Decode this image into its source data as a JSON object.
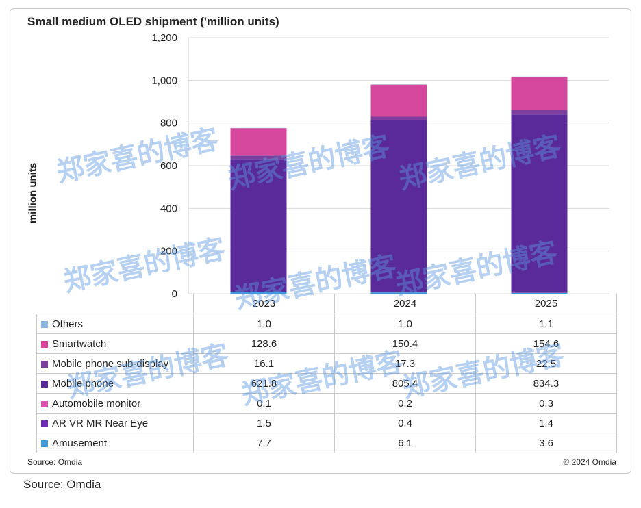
{
  "title": "Small medium OLED shipment ('million units)",
  "ylabel": "million units",
  "source_small": "Source: Omdia",
  "copyright": "© 2024 Omdia",
  "source_big": "Source: Omdia",
  "watermark": "郑家喜的博客",
  "chart_data": {
    "type": "bar",
    "stacked": true,
    "title": "Small medium OLED shipment ('million units)",
    "ylabel": "million units",
    "ylim": [
      0,
      1200
    ],
    "yticks": [
      "0",
      "200",
      "400",
      "600",
      "800",
      "1,000",
      "1,200"
    ],
    "ytick_values": [
      0,
      200,
      400,
      600,
      800,
      1000,
      1200
    ],
    "categories": [
      "2023",
      "2024",
      "2025"
    ],
    "series": [
      {
        "name": "Others",
        "values": [
          1.0,
          1.0,
          1.1
        ],
        "display": [
          "1.0",
          "1.0",
          "1.1"
        ],
        "color": "#8db4e2"
      },
      {
        "name": "Smartwatch",
        "values": [
          128.6,
          150.4,
          154.6
        ],
        "display": [
          "128.6",
          "150.4",
          "154.6"
        ],
        "color": "#d4479c"
      },
      {
        "name": "Mobile phone sub-display",
        "values": [
          16.1,
          17.3,
          22.5
        ],
        "display": [
          "16.1",
          "17.3",
          "22.5"
        ],
        "color": "#7b3fa0"
      },
      {
        "name": "Mobile phone",
        "values": [
          621.8,
          805.4,
          834.3
        ],
        "display": [
          "621.8",
          "805.4",
          "834.3"
        ],
        "color": "#5a2a9a"
      },
      {
        "name": "Automobile monitor",
        "values": [
          0.1,
          0.2,
          0.3
        ],
        "display": [
          "0.1",
          "0.2",
          "0.3"
        ],
        "color": "#e052b0"
      },
      {
        "name": "AR VR MR Near Eye",
        "values": [
          1.5,
          0.4,
          1.4
        ],
        "display": [
          "1.5",
          "0.4",
          "1.4"
        ],
        "color": "#6b2bb0"
      },
      {
        "name": "Amusement",
        "values": [
          7.7,
          6.1,
          3.6
        ],
        "display": [
          "7.7",
          "6.1",
          "3.6"
        ],
        "color": "#3e9ad8"
      }
    ],
    "stack_order": [
      "Amusement",
      "AR VR MR Near Eye",
      "Automobile monitor",
      "Mobile phone",
      "Mobile phone sub-display",
      "Smartwatch",
      "Others"
    ]
  }
}
